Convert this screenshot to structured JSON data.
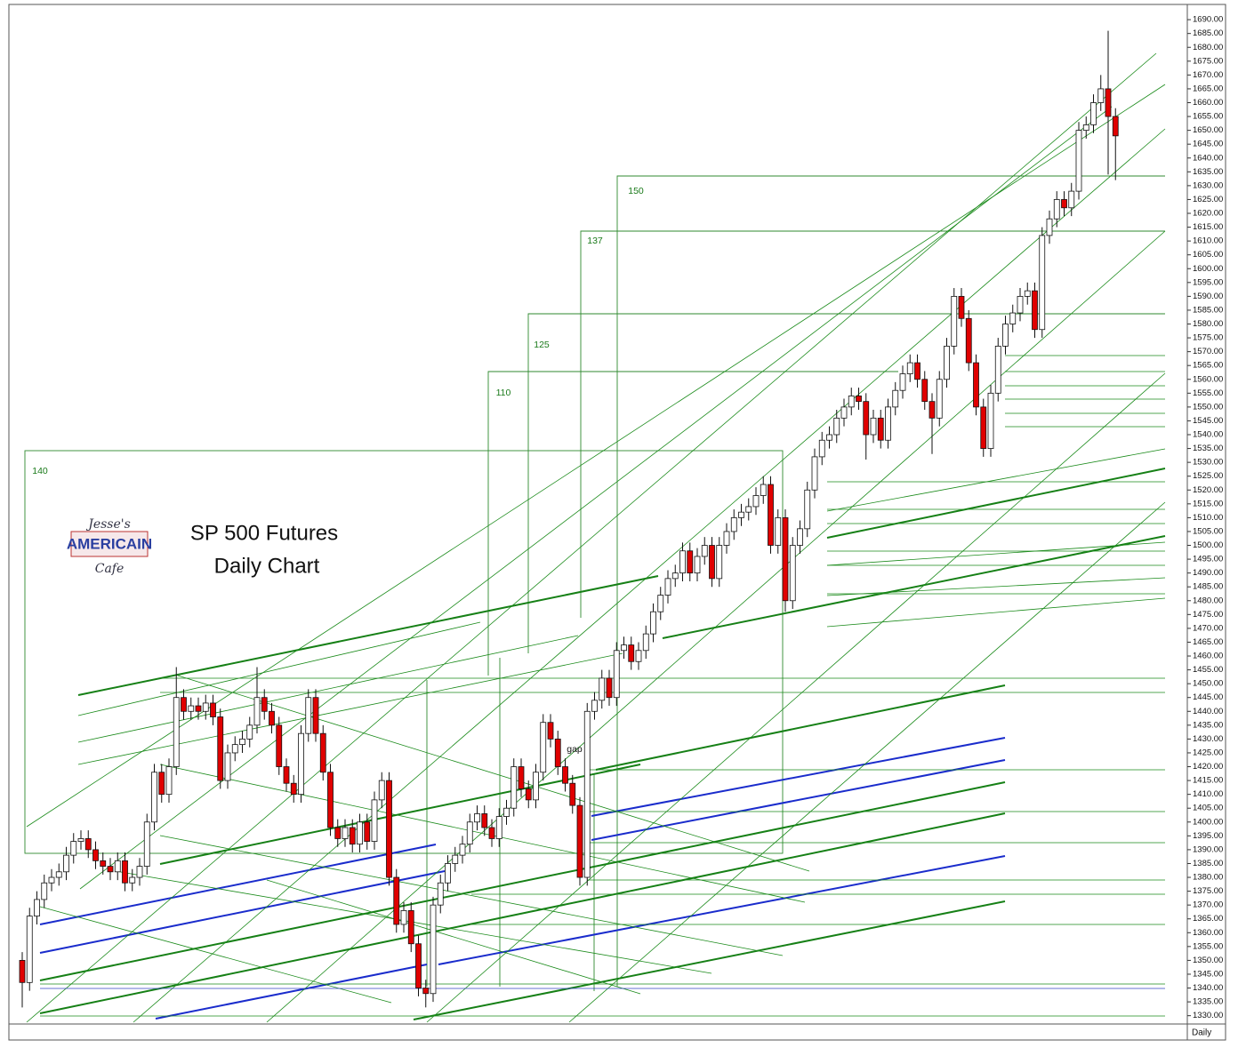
{
  "chart_data": {
    "type": "candlestick",
    "title": "SP 500 Futures",
    "subtitle": "Daily Chart",
    "period_label": "Daily",
    "logo": [
      "Jesse's",
      "AMERICAIN",
      "Cafe"
    ],
    "annotations": [
      "140",
      "110",
      "125",
      "137",
      "150",
      "gap"
    ],
    "up_color": "#ffffff",
    "down_color": "#e00000",
    "ylim": [
      1327,
      1695.5
    ],
    "yticks": [
      {
        "value": 1330,
        "label": "1330.00"
      },
      {
        "value": 1335,
        "label": "1335.00"
      },
      {
        "value": 1340,
        "label": "1340.00"
      },
      {
        "value": 1345,
        "label": "1345.00"
      },
      {
        "value": 1350,
        "label": "1350.00"
      },
      {
        "value": 1355,
        "label": "1355.00"
      },
      {
        "value": 1360,
        "label": "1360.00"
      },
      {
        "value": 1365,
        "label": "1365.00"
      },
      {
        "value": 1370,
        "label": "1370.00"
      },
      {
        "value": 1375,
        "label": "1375.00"
      },
      {
        "value": 1380,
        "label": "1380.00"
      },
      {
        "value": 1385,
        "label": "1385.00"
      },
      {
        "value": 1390,
        "label": "1390.00"
      },
      {
        "value": 1395,
        "label": "1395.00"
      },
      {
        "value": 1400,
        "label": "1400.00"
      },
      {
        "value": 1405,
        "label": "1405.00"
      },
      {
        "value": 1410,
        "label": "1410.00"
      },
      {
        "value": 1415,
        "label": "1415.00"
      },
      {
        "value": 1420,
        "label": "1420.00"
      },
      {
        "value": 1425,
        "label": "1425.00"
      },
      {
        "value": 1430,
        "label": "1430.00"
      },
      {
        "value": 1435,
        "label": "1435.00"
      },
      {
        "value": 1440,
        "label": "1440.00"
      },
      {
        "value": 1445,
        "label": "1445.00"
      },
      {
        "value": 1450,
        "label": "1450.00"
      },
      {
        "value": 1455,
        "label": "1455.00"
      },
      {
        "value": 1460,
        "label": "1460.00"
      },
      {
        "value": 1465,
        "label": "1465.00"
      },
      {
        "value": 1470,
        "label": "1470.00"
      },
      {
        "value": 1475,
        "label": "1475.00"
      },
      {
        "value": 1480,
        "label": "1480.00"
      },
      {
        "value": 1485,
        "label": "1485.00"
      },
      {
        "value": 1490,
        "label": "1490.00"
      },
      {
        "value": 1495,
        "label": "1495.00"
      },
      {
        "value": 1500,
        "label": "1500.00"
      },
      {
        "value": 1505,
        "label": "1505.00"
      },
      {
        "value": 1510,
        "label": "1510.00"
      },
      {
        "value": 1515,
        "label": "1515.00"
      },
      {
        "value": 1520,
        "label": "1520.00"
      },
      {
        "value": 1525,
        "label": "1525.00"
      },
      {
        "value": 1530,
        "label": "1530.00"
      },
      {
        "value": 1535,
        "label": "1535.00"
      },
      {
        "value": 1540,
        "label": "1540.00"
      },
      {
        "value": 1545,
        "label": "1545.00"
      },
      {
        "value": 1550,
        "label": "1550.00"
      },
      {
        "value": 1555,
        "label": "1555.00"
      },
      {
        "value": 1560,
        "label": "1560.00"
      },
      {
        "value": 1565,
        "label": "1565.00"
      },
      {
        "value": 1570,
        "label": "1570.00"
      },
      {
        "value": 1575,
        "label": "1575.00"
      },
      {
        "value": 1580,
        "label": "1580.00"
      },
      {
        "value": 1585,
        "label": "1585.00"
      },
      {
        "value": 1590,
        "label": "1590.00"
      },
      {
        "value": 1595,
        "label": "1595.00"
      },
      {
        "value": 1600,
        "label": "1600.00"
      },
      {
        "value": 1605,
        "label": "1605.00"
      },
      {
        "value": 1610,
        "label": "1610.00"
      },
      {
        "value": 1615,
        "label": "1615.00"
      },
      {
        "value": 1620,
        "label": "1620.00"
      },
      {
        "value": 1625,
        "label": "1625.00"
      },
      {
        "value": 1630,
        "label": "1630.00"
      },
      {
        "value": 1635,
        "label": "1635.00"
      },
      {
        "value": 1640,
        "label": "1640.00"
      },
      {
        "value": 1645,
        "label": "1645.00"
      },
      {
        "value": 1650,
        "label": "1650.00"
      },
      {
        "value": 1655,
        "label": "1655.00"
      },
      {
        "value": 1660,
        "label": "1660.00"
      },
      {
        "value": 1665,
        "label": "1665.00"
      },
      {
        "value": 1670,
        "label": "1670.00"
      },
      {
        "value": 1675,
        "label": "1675.00"
      },
      {
        "value": 1680,
        "label": "1680.00"
      },
      {
        "value": 1685,
        "label": "1685.00"
      },
      {
        "value": 1690,
        "label": "1690.00"
      }
    ],
    "open": [
      1350,
      1342,
      1366,
      1372,
      1378,
      1380,
      1382,
      1388,
      1393,
      1394,
      1390,
      1386,
      1384,
      1382,
      1386,
      1378,
      1380,
      1384,
      1400,
      1418,
      1410,
      1420,
      1445,
      1440,
      1442,
      1440,
      1443,
      1438,
      1415,
      1425,
      1428,
      1430,
      1435,
      1445,
      1440,
      1435,
      1420,
      1414,
      1410,
      1432,
      1445,
      1432,
      1418,
      1398,
      1394,
      1398,
      1392,
      1400,
      1393,
      1408,
      1415,
      1380,
      1363,
      1368,
      1356,
      1340,
      1338,
      1370,
      1378,
      1385,
      1388,
      1392,
      1400,
      1403,
      1398,
      1394,
      1402,
      1405,
      1420,
      1412,
      1408,
      1418,
      1436,
      1430,
      1420,
      1414,
      1406,
      1380,
      1440,
      1444,
      1452,
      1445,
      1462,
      1464,
      1458,
      1462,
      1468,
      1476,
      1482,
      1488,
      1490,
      1498,
      1490,
      1496,
      1500,
      1488,
      1500,
      1505,
      1510,
      1512,
      1514,
      1518,
      1522,
      1500,
      1510,
      1480,
      1500,
      1506,
      1520,
      1532,
      1538,
      1540,
      1546,
      1550,
      1554,
      1552,
      1540,
      1546,
      1538,
      1550,
      1556,
      1562,
      1566,
      1560,
      1552,
      1546,
      1560,
      1572,
      1590,
      1582,
      1566,
      1550,
      1535,
      1555,
      1572,
      1580,
      1584,
      1590,
      1592,
      1578,
      1612,
      1618,
      1625,
      1622,
      1628,
      1650,
      1652,
      1660,
      1665,
      1655
    ],
    "high": [
      1353,
      1369,
      1375,
      1381,
      1383,
      1385,
      1391,
      1396,
      1397,
      1397,
      1393,
      1389,
      1387,
      1389,
      1389,
      1383,
      1387,
      1403,
      1421,
      1421,
      1423,
      1456,
      1448,
      1445,
      1445,
      1446,
      1446,
      1441,
      1428,
      1431,
      1433,
      1438,
      1456,
      1448,
      1443,
      1438,
      1423,
      1417,
      1435,
      1448,
      1448,
      1435,
      1421,
      1401,
      1401,
      1401,
      1403,
      1403,
      1411,
      1418,
      1418,
      1383,
      1371,
      1371,
      1359,
      1343,
      1373,
      1381,
      1388,
      1391,
      1395,
      1403,
      1406,
      1406,
      1401,
      1405,
      1408,
      1423,
      1423,
      1415,
      1421,
      1439,
      1439,
      1433,
      1423,
      1417,
      1409,
      1443,
      1447,
      1455,
      1455,
      1465,
      1467,
      1467,
      1465,
      1471,
      1479,
      1485,
      1491,
      1493,
      1501,
      1501,
      1499,
      1503,
      1503,
      1503,
      1508,
      1513,
      1515,
      1517,
      1521,
      1525,
      1525,
      1513,
      1513,
      1503,
      1509,
      1523,
      1535,
      1541,
      1543,
      1549,
      1553,
      1557,
      1557,
      1555,
      1549,
      1549,
      1553,
      1559,
      1565,
      1569,
      1569,
      1563,
      1555,
      1563,
      1575,
      1593,
      1593,
      1585,
      1569,
      1553,
      1558,
      1575,
      1583,
      1587,
      1593,
      1595,
      1595,
      1615,
      1621,
      1628,
      1628,
      1631,
      1653,
      1655,
      1663,
      1670,
      1686,
      1658
    ],
    "low": [
      1333,
      1339,
      1363,
      1369,
      1375,
      1377,
      1379,
      1385,
      1390,
      1387,
      1383,
      1381,
      1379,
      1379,
      1375,
      1375,
      1377,
      1381,
      1397,
      1407,
      1407,
      1417,
      1437,
      1437,
      1437,
      1437,
      1435,
      1412,
      1412,
      1422,
      1425,
      1427,
      1432,
      1437,
      1432,
      1417,
      1411,
      1407,
      1407,
      1429,
      1429,
      1415,
      1395,
      1391,
      1391,
      1389,
      1389,
      1390,
      1390,
      1405,
      1377,
      1360,
      1360,
      1353,
      1337,
      1333,
      1335,
      1367,
      1375,
      1382,
      1385,
      1389,
      1397,
      1395,
      1391,
      1391,
      1399,
      1402,
      1409,
      1405,
      1405,
      1415,
      1427,
      1417,
      1411,
      1403,
      1377,
      1377,
      1437,
      1441,
      1442,
      1442,
      1459,
      1455,
      1455,
      1459,
      1465,
      1473,
      1479,
      1485,
      1487,
      1487,
      1487,
      1493,
      1485,
      1485,
      1497,
      1502,
      1507,
      1509,
      1511,
      1515,
      1497,
      1497,
      1476,
      1477,
      1497,
      1503,
      1517,
      1529,
      1535,
      1537,
      1543,
      1547,
      1549,
      1531,
      1537,
      1535,
      1535,
      1547,
      1553,
      1559,
      1557,
      1549,
      1533,
      1543,
      1557,
      1569,
      1579,
      1563,
      1547,
      1532,
      1532,
      1552,
      1569,
      1577,
      1581,
      1587,
      1575,
      1575,
      1609,
      1615,
      1619,
      1619,
      1625,
      1647,
      1649,
      1657,
      1634,
      1632
    ],
    "close": [
      1342,
      1366,
      1372,
      1378,
      1380,
      1382,
      1388,
      1393,
      1394,
      1390,
      1386,
      1384,
      1382,
      1386,
      1378,
      1380,
      1384,
      1400,
      1418,
      1410,
      1420,
      1445,
      1440,
      1442,
      1440,
      1443,
      1438,
      1415,
      1425,
      1428,
      1430,
      1435,
      1445,
      1440,
      1435,
      1420,
      1414,
      1410,
      1432,
      1445,
      1432,
      1418,
      1398,
      1394,
      1398,
      1392,
      1400,
      1393,
      1408,
      1415,
      1380,
      1363,
      1368,
      1356,
      1340,
      1338,
      1370,
      1378,
      1385,
      1388,
      1392,
      1400,
      1403,
      1398,
      1394,
      1402,
      1405,
      1420,
      1412,
      1408,
      1418,
      1436,
      1430,
      1420,
      1414,
      1406,
      1380,
      1440,
      1444,
      1452,
      1445,
      1462,
      1464,
      1458,
      1462,
      1468,
      1476,
      1482,
      1488,
      1490,
      1498,
      1490,
      1496,
      1500,
      1488,
      1500,
      1505,
      1510,
      1512,
      1514,
      1518,
      1522,
      1500,
      1510,
      1480,
      1500,
      1506,
      1520,
      1532,
      1538,
      1540,
      1546,
      1550,
      1554,
      1552,
      1540,
      1546,
      1538,
      1550,
      1556,
      1562,
      1566,
      1560,
      1552,
      1546,
      1560,
      1572,
      1590,
      1582,
      1566,
      1550,
      1535,
      1555,
      1572,
      1580,
      1584,
      1590,
      1592,
      1578,
      1612,
      1618,
      1625,
      1622,
      1628,
      1650,
      1652,
      1660,
      1665,
      1655,
      1648
    ]
  }
}
